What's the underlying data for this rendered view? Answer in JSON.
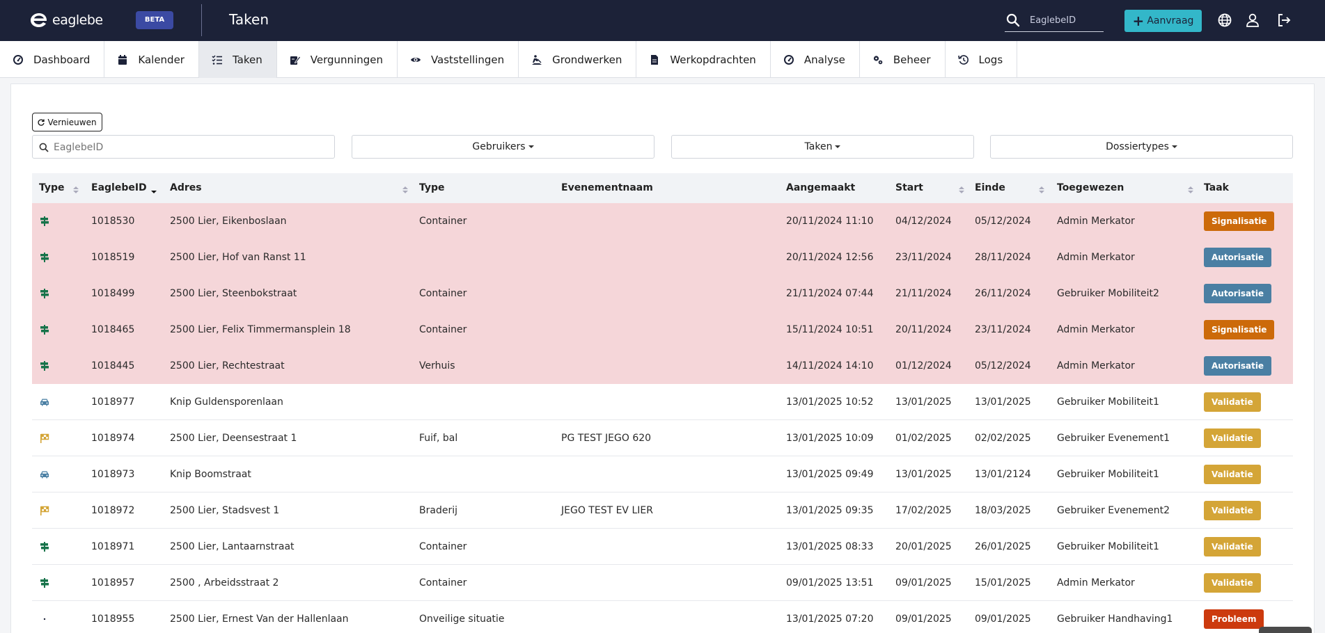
{
  "header": {
    "brand": "eaglebe",
    "beta_label": "BETA",
    "title": "Taken",
    "search_placeholder": "EaglebeID",
    "aanvraag_label": "Aanvraag"
  },
  "nav": {
    "items": [
      {
        "label": "Dashboard",
        "icon": "gauge-icon"
      },
      {
        "label": "Kalender",
        "icon": "calendar-icon"
      },
      {
        "label": "Taken",
        "icon": "tasks-icon",
        "active": true
      },
      {
        "label": "Vergunningen",
        "icon": "signature-icon"
      },
      {
        "label": "Vaststellingen",
        "icon": "eye-icon"
      },
      {
        "label": "Grondwerken",
        "icon": "digging-icon"
      },
      {
        "label": "Werkopdrachten",
        "icon": "document-icon"
      },
      {
        "label": "Analyse",
        "icon": "gauge-icon"
      },
      {
        "label": "Beheer",
        "icon": "gears-icon"
      },
      {
        "label": "Logs",
        "icon": "history-icon"
      }
    ]
  },
  "toolbar": {
    "refresh_label": "Vernieuwen",
    "search_placeholder": "EaglebeID",
    "filters": [
      "Gebruikers",
      "Taken",
      "Dossiertypes"
    ]
  },
  "table": {
    "columns": [
      "Type",
      "EaglebeID",
      "Adres",
      "Type",
      "Evenementnaam",
      "Aangemaakt",
      "Start",
      "Einde",
      "Toegewezen",
      "Taak"
    ],
    "rows": [
      {
        "icon": "signpost",
        "id": "1018530",
        "adres": "2500 Lier, Eikenboslaan",
        "type": "Container",
        "event": "",
        "created": "20/11/2024 11:10",
        "start": "04/12/2024",
        "end": "05/12/2024",
        "assigned": "Admin Merkator",
        "task": "Signalisatie",
        "late": true
      },
      {
        "icon": "signpost",
        "id": "1018519",
        "adres": "2500 Lier, Hof van Ranst 11",
        "type": "",
        "event": "",
        "created": "20/11/2024 12:56",
        "start": "23/11/2024",
        "end": "28/11/2024",
        "assigned": "Admin Merkator",
        "task": "Autorisatie",
        "late": true
      },
      {
        "icon": "signpost",
        "id": "1018499",
        "adres": "2500 Lier, Steenbokstraat",
        "type": "Container",
        "event": "",
        "created": "21/11/2024 07:44",
        "start": "21/11/2024",
        "end": "26/11/2024",
        "assigned": "Gebruiker Mobiliteit2",
        "task": "Autorisatie",
        "late": true
      },
      {
        "icon": "signpost",
        "id": "1018465",
        "adres": "2500 Lier, Felix Timmermansplein 18",
        "type": "Container",
        "event": "",
        "created": "15/11/2024 10:51",
        "start": "20/11/2024",
        "end": "23/11/2024",
        "assigned": "Admin Merkator",
        "task": "Signalisatie",
        "late": true
      },
      {
        "icon": "signpost",
        "id": "1018445",
        "adres": "2500 Lier, Rechtestraat",
        "type": "Verhuis",
        "event": "",
        "created": "14/11/2024 14:10",
        "start": "01/12/2024",
        "end": "05/12/2024",
        "assigned": "Admin Merkator",
        "task": "Autorisatie",
        "late": true
      },
      {
        "icon": "car",
        "id": "1018977",
        "adres": "Knip Guldensporenlaan",
        "type": "",
        "event": "",
        "created": "13/01/2025 10:52",
        "start": "13/01/2025",
        "end": "13/01/2025",
        "assigned": "Gebruiker Mobiliteit1",
        "task": "Validatie",
        "late": false
      },
      {
        "icon": "flag",
        "id": "1018974",
        "adres": "2500 Lier, Deensestraat 1",
        "type": "Fuif, bal",
        "event": "PG TEST JEGO 620",
        "created": "13/01/2025 10:09",
        "start": "01/02/2025",
        "end": "02/02/2025",
        "assigned": "Gebruiker Evenement1",
        "task": "Validatie",
        "late": false
      },
      {
        "icon": "car",
        "id": "1018973",
        "adres": "Knip Boomstraat",
        "type": "",
        "event": "",
        "created": "13/01/2025 09:49",
        "start": "13/01/2025",
        "end": "13/01/2124",
        "assigned": "Gebruiker Mobiliteit1",
        "task": "Validatie",
        "late": false
      },
      {
        "icon": "flag",
        "id": "1018972",
        "adres": "2500 Lier, Stadsvest 1",
        "type": "Braderij",
        "event": "JEGO TEST EV LIER",
        "created": "13/01/2025 09:35",
        "start": "17/02/2025",
        "end": "18/03/2025",
        "assigned": "Gebruiker Evenement2",
        "task": "Validatie",
        "late": false
      },
      {
        "icon": "signpost",
        "id": "1018971",
        "adres": "2500 Lier, Lantaarnstraat",
        "type": "Container",
        "event": "",
        "created": "13/01/2025 08:33",
        "start": "20/01/2025",
        "end": "26/01/2025",
        "assigned": "Gebruiker Mobiliteit1",
        "task": "Validatie",
        "late": false
      },
      {
        "icon": "signpost",
        "id": "1018957",
        "adres": "2500 , Arbeidsstraat 2",
        "type": "Container",
        "event": "",
        "created": "09/01/2025 13:51",
        "start": "09/01/2025",
        "end": "15/01/2025",
        "assigned": "Admin Merkator",
        "task": "Validatie",
        "late": false
      },
      {
        "icon": "eye",
        "id": "1018955",
        "adres": "2500 Lier, Ernest Van der Hallenlaan",
        "type": "Onveilige situatie",
        "event": "",
        "created": "13/01/2025 07:20",
        "start": "09/01/2025",
        "end": "09/01/2025",
        "assigned": "Gebruiker Handhaving1",
        "task": "Probleem",
        "late": false
      }
    ]
  },
  "colors": {
    "topbar": "#1c2238",
    "accent": "#33b7c9",
    "late_row": "#f5d6d9",
    "Signalisatie": "#cc6a0a",
    "Autorisatie": "#4a7fa3",
    "Validatie": "#d4a537",
    "Probleem": "#cc3a0e",
    "signpost": "#17734a",
    "car": "#4a7fa3",
    "flag": "#d4a537",
    "eye": "#1c2238"
  }
}
